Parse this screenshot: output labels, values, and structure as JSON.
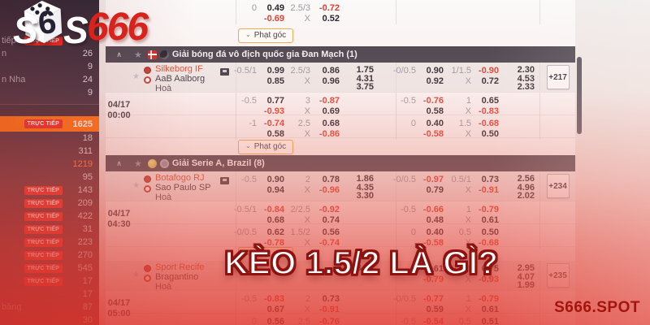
{
  "overlay": {
    "title": "KÈO 1.5/2 LÀ GÌ?",
    "watermark": "S666.SPOT"
  },
  "logo": {
    "s1": "S",
    "die_face": "6",
    "s2": "S",
    "suffix": "666"
  },
  "sidebar": {
    "live_badge": "TRỰC TIẾP",
    "rows": [
      {
        "label": "tiếp",
        "badge": true,
        "count": ""
      },
      {
        "label": "n",
        "count": "26"
      },
      {
        "count": "9"
      },
      {
        "label": "n Nha",
        "count": "24"
      },
      {
        "count": "9"
      },
      {
        "divider": true
      },
      {
        "badge": true,
        "count": "1625",
        "highlight": true
      },
      {
        "count": "18"
      },
      {
        "count": "311"
      },
      {
        "count": "1219",
        "accent": true
      },
      {
        "count": "95"
      },
      {
        "badge": true,
        "count": "143"
      },
      {
        "badge": true,
        "count": "209"
      },
      {
        "badge": true,
        "count": "422"
      },
      {
        "badge": true,
        "count": "31"
      },
      {
        "badge": true,
        "count": "223"
      },
      {
        "badge": true,
        "count": "270"
      },
      {
        "badge": true,
        "count": "545"
      },
      {
        "badge": true,
        "count": "17"
      },
      {
        "count": "17"
      },
      {
        "label": "băng",
        "count": "87"
      },
      {
        "count": "30"
      }
    ]
  },
  "panel": {
    "corner_button": "Phạt góc",
    "corner_chevron": "⌄",
    "collapse_chevron": "∧",
    "top_fragment": {
      "ft": {
        "hdp": "0",
        "hdp_odds": [
          "0.49",
          "-0.69"
        ],
        "ou": "2.5/3",
        "ou_x": "X",
        "ou_odds": [
          "-0.72",
          "0.52"
        ]
      }
    },
    "leagues": [
      {
        "title": "Giải bóng đá vô địch quốc gia Đan Mạch (1)",
        "icons": [
          "denmark-flag",
          "ball-icon"
        ],
        "matches": [
          {
            "date": "04/17",
            "time": "00:00",
            "home": "Silkeborg IF",
            "away": "AaB Aalborg",
            "draw": "Hoà",
            "more": "+217",
            "tv": true,
            "corner": true,
            "lines": [
              {
                "ft": {
                  "hdp": "-0.5/1",
                  "odds": [
                    "0.99",
                    "0.85"
                  ],
                  "ou": "2.5/3",
                  "ou_odds": [
                    "0.86",
                    "0.96"
                  ],
                  "x12": [
                    "1.75",
                    "4.31",
                    "3.75"
                  ]
                },
                "h1": {
                  "hdp": "-0/0.5",
                  "odds": [
                    "0.90",
                    "0.92"
                  ],
                  "ou": "1/1.5",
                  "ou_odds": [
                    "-0.90",
                    "0.72"
                  ],
                  "x12": [
                    "2.30",
                    "4.53",
                    "2.33"
                  ]
                }
              },
              {
                "ft": {
                  "hdp": "-0.5",
                  "odds": [
                    "0.77",
                    "-0.93"
                  ],
                  "ou": "3",
                  "ou_odds": [
                    "-0.87",
                    "0.69"
                  ]
                },
                "h1": {
                  "hdp": "-0.5",
                  "odds": [
                    "-0.76",
                    "0.58"
                  ],
                  "ou": "1",
                  "ou_odds": [
                    "0.65",
                    "-0.83"
                  ]
                }
              },
              {
                "ft": {
                  "hdp": "-1",
                  "odds": [
                    "-0.74",
                    "0.58"
                  ],
                  "ou": "2.5",
                  "ou_odds": [
                    "0.68",
                    "-0.86"
                  ]
                },
                "h1": {
                  "hdp": "0",
                  "odds": [
                    "0.40",
                    "-0.58"
                  ],
                  "ou": "1.5",
                  "ou_odds": [
                    "-0.68",
                    "0.50"
                  ]
                }
              }
            ]
          }
        ]
      },
      {
        "title": "Giải Serie A, Brazil (8)",
        "icons": [
          "conmebol-icon",
          "league-icon"
        ],
        "matches": [
          {
            "date": "04/17",
            "time": "04:30",
            "home": "Botafogo RJ",
            "away": "Sao Paulo SP",
            "draw": "Hoà",
            "more": "+234",
            "tv": true,
            "corner": true,
            "lines": [
              {
                "ft": {
                  "hdp": "-0.5",
                  "odds": [
                    "0.90",
                    "0.94"
                  ],
                  "ou": "2",
                  "ou_odds": [
                    "0.78",
                    "-0.96"
                  ],
                  "x12": [
                    "1.86",
                    "4.35",
                    "3.30"
                  ]
                },
                "h1": {
                  "hdp": "-0/0.5",
                  "odds": [
                    "-0.97",
                    "0.79"
                  ],
                  "ou": "0.5/1",
                  "ou_odds": [
                    "0.73",
                    "-0.91"
                  ],
                  "x12": [
                    "2.56",
                    "4.96",
                    "2.02"
                  ]
                }
              },
              {
                "ft": {
                  "hdp": "-0.5/1",
                  "odds": [
                    "-0.84",
                    "0.68"
                  ],
                  "ou": "2/2.5",
                  "ou_odds": [
                    "-0.92",
                    "0.74"
                  ]
                },
                "h1": {
                  "hdp": "-0.5",
                  "odds": [
                    "-0.66",
                    "0.48"
                  ],
                  "ou": "1",
                  "ou_odds": [
                    "-0.79",
                    "0.61"
                  ]
                }
              },
              {
                "ft": {
                  "hdp": "-0/0.5",
                  "odds": [
                    "0.62",
                    "-0.78"
                  ],
                  "ou": "1.5/2",
                  "ou_odds": [
                    "0.56",
                    "-0.74"
                  ]
                },
                "h1": {
                  "hdp": "0",
                  "odds": [
                    "0.40",
                    "-0.58"
                  ],
                  "ou": "0.5",
                  "ou_odds": [
                    "0.50",
                    "-0.68"
                  ]
                }
              }
            ]
          },
          {
            "date": "04/17",
            "time": "05:00",
            "home": "Sport Recife",
            "away": "Bragantino",
            "draw": "Hoà",
            "more": "+235",
            "tv": false,
            "corner": false,
            "lines": [
              {
                "ft": {
                  "hdp": "",
                  "odds": [
                    "",
                    ""
                  ],
                  "ou": "",
                  "ou_odds": [
                    "",
                    ""
                  ],
                  "x12": [
                    "",
                    "",
                    "3.15"
                  ]
                },
                "h1": {
                  "hdp": "",
                  "odds": [
                    "0.61",
                    "-0.79"
                  ],
                  "ou": "0.5/1",
                  "ou_odds": [
                    "0.75",
                    "-0.93"
                  ],
                  "x12": [
                    "2.95",
                    "4.07",
                    "1.99"
                  ]
                }
              },
              {
                "ft": {
                  "hdp": "-0.5",
                  "odds": [
                    "-0.83",
                    "0.67"
                  ],
                  "ou": "2",
                  "ou_odds": [
                    "0.73",
                    "-0.91"
                  ]
                },
                "h1": {
                  "hdp": "-0/0.5",
                  "odds": [
                    "-0.77",
                    "0.59"
                  ],
                  "ou": "1",
                  "ou_odds": [
                    "-0.79",
                    "0.61"
                  ]
                }
              },
              {
                "ft": {
                  "hdp": "0",
                  "odds": [
                    "0.56",
                    ""
                  ],
                  "ou": "2.5",
                  "ou_odds": [
                    "-0.76",
                    ""
                  ]
                },
                "h1": {
                  "hdp": "-0.5",
                  "odds": [
                    "-0.54",
                    ""
                  ],
                  "ou": "0.5",
                  "ou_odds": [
                    "0.51",
                    ""
                  ]
                }
              }
            ]
          }
        ]
      }
    ]
  }
}
